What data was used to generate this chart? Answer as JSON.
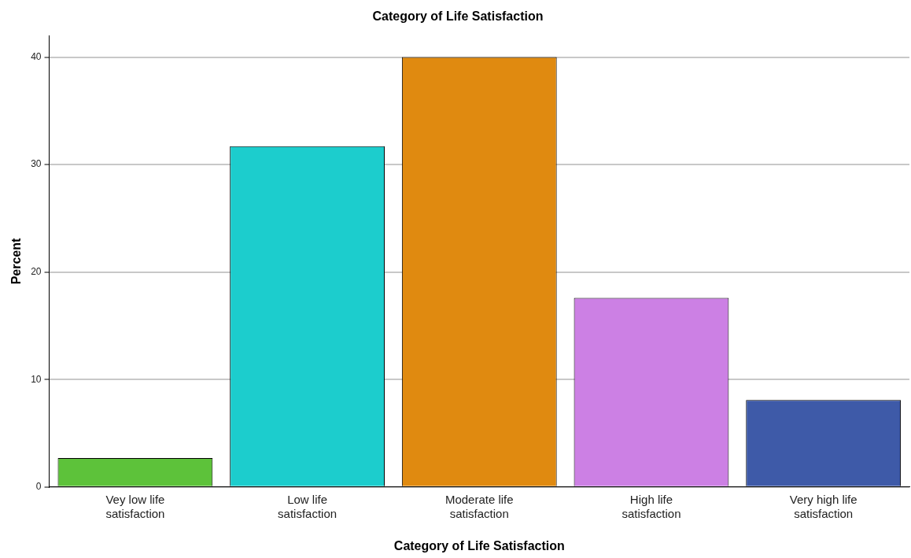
{
  "chart_data": {
    "type": "bar",
    "title": "Category of Life Satisfaction",
    "xlabel": "Category of Life Satisfaction",
    "ylabel": "Percent",
    "categories": [
      "Vey low life satisfaction",
      "Low life satisfaction",
      "Moderate life satisfaction",
      "High life satisfaction",
      "Very high life satisfaction"
    ],
    "values": [
      2.7,
      31.7,
      40.0,
      17.6,
      8.1
    ],
    "colors": [
      "#5dc23a",
      "#1ccdcd",
      "#e08a10",
      "#cc80e4",
      "#3e5aa8"
    ],
    "ylim": [
      0,
      42
    ],
    "yticks": [
      0,
      10,
      20,
      30,
      40
    ],
    "grid": "y"
  }
}
